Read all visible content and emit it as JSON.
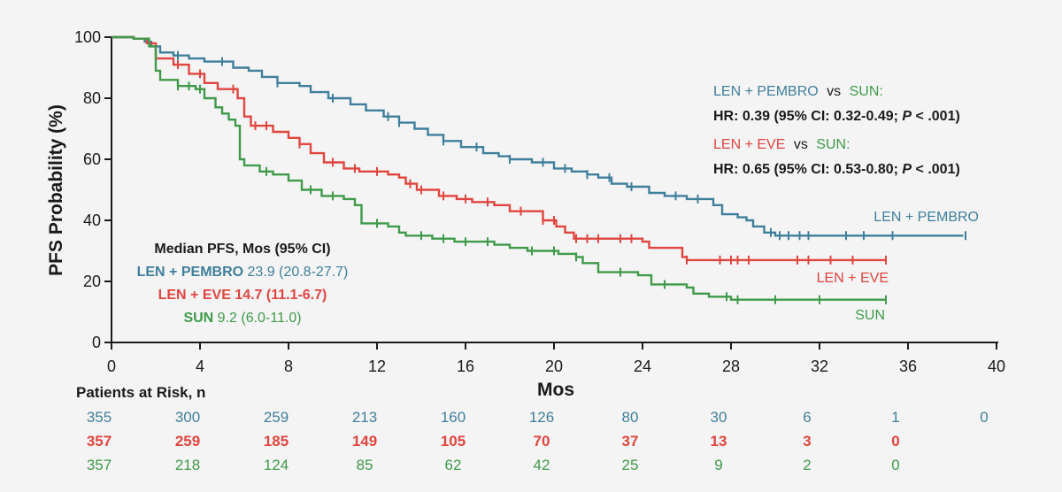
{
  "colors": {
    "pembro": "#3f7f9b",
    "eve": "#e0453f",
    "sun": "#3f9a4a",
    "dark": "#1a1a1a",
    "background": "#f4f4f4"
  },
  "chart_data": {
    "type": "line",
    "title": "",
    "xlabel": "Mos",
    "ylabel": "PFS Probability (%)",
    "xlim": [
      0,
      40
    ],
    "ylim": [
      0,
      100
    ],
    "x_ticks": [
      "0",
      "4",
      "8",
      "12",
      "16",
      "20",
      "24",
      "28",
      "32",
      "36",
      "40"
    ],
    "y_ticks": [
      "0",
      "20",
      "40",
      "60",
      "80",
      "100"
    ],
    "grid": false,
    "series": [
      {
        "name": "LEN + PEMBRO",
        "color_key": "pembro",
        "points": [
          [
            0,
            100
          ],
          [
            1,
            99.5
          ],
          [
            1.5,
            98.5
          ],
          [
            1.8,
            97
          ],
          [
            2.2,
            95
          ],
          [
            2.8,
            94
          ],
          [
            3.5,
            93
          ],
          [
            4.2,
            92
          ],
          [
            5.5,
            90
          ],
          [
            6.2,
            89
          ],
          [
            6.8,
            87
          ],
          [
            7.5,
            85
          ],
          [
            8.5,
            84
          ],
          [
            9,
            82
          ],
          [
            9.8,
            80
          ],
          [
            10.8,
            78
          ],
          [
            11.5,
            76
          ],
          [
            12.3,
            74
          ],
          [
            13,
            72
          ],
          [
            13.7,
            70
          ],
          [
            14.3,
            68
          ],
          [
            15,
            66
          ],
          [
            15.8,
            64
          ],
          [
            16.8,
            62
          ],
          [
            17.5,
            61
          ],
          [
            18,
            60
          ],
          [
            19,
            59
          ],
          [
            20,
            57
          ],
          [
            20.8,
            56
          ],
          [
            21.5,
            55
          ],
          [
            22,
            54
          ],
          [
            22.6,
            52
          ],
          [
            23.3,
            51
          ],
          [
            24.3,
            49
          ],
          [
            25,
            48
          ],
          [
            26,
            47
          ],
          [
            27.2,
            45
          ],
          [
            27.6,
            42
          ],
          [
            28.3,
            41
          ],
          [
            28.7,
            40
          ],
          [
            29,
            38
          ],
          [
            29.5,
            36
          ],
          [
            30,
            35
          ],
          [
            38.5,
            35
          ]
        ],
        "censor_x": [
          3,
          5,
          7.5,
          10,
          12.5,
          13,
          15,
          16.5,
          18,
          19.5,
          20.5,
          21.5,
          22.5,
          23.5,
          25.5,
          26.5,
          29.8,
          30.2,
          30.6,
          31.1,
          31.5,
          33.2,
          34,
          35.3,
          38.6
        ]
      },
      {
        "name": "LEN + EVE",
        "color_key": "eve",
        "points": [
          [
            0,
            100
          ],
          [
            1,
            99.5
          ],
          [
            1.6,
            98
          ],
          [
            2,
            93
          ],
          [
            2.8,
            91
          ],
          [
            3.5,
            88
          ],
          [
            4.2,
            85
          ],
          [
            4.8,
            83
          ],
          [
            5.7,
            80
          ],
          [
            6,
            74
          ],
          [
            6.3,
            71
          ],
          [
            7.3,
            69
          ],
          [
            8,
            67
          ],
          [
            8.5,
            65
          ],
          [
            9,
            62
          ],
          [
            9.6,
            59
          ],
          [
            10.5,
            57
          ],
          [
            11.2,
            56
          ],
          [
            12.5,
            55
          ],
          [
            13,
            54
          ],
          [
            13.3,
            52
          ],
          [
            13.8,
            50
          ],
          [
            14.8,
            48
          ],
          [
            15.6,
            47
          ],
          [
            16.3,
            46
          ],
          [
            17.3,
            45
          ],
          [
            18,
            43
          ],
          [
            19.5,
            40
          ],
          [
            20.1,
            38
          ],
          [
            20.5,
            36
          ],
          [
            20.9,
            34
          ],
          [
            24,
            33
          ],
          [
            24.3,
            31
          ],
          [
            25.8,
            28
          ],
          [
            26,
            27
          ],
          [
            35,
            27
          ]
        ],
        "censor_x": [
          3,
          4,
          5.5,
          6.5,
          7,
          8.5,
          10,
          11,
          12,
          13.5,
          14,
          15,
          16,
          17,
          18.5,
          19.5,
          20,
          21,
          21.5,
          22,
          23,
          23.5,
          26,
          27.5,
          28,
          28.3,
          28.8,
          31,
          31.5,
          32.5,
          33.5,
          35
        ]
      },
      {
        "name": "SUN",
        "color_key": "sun",
        "points": [
          [
            0,
            100
          ],
          [
            1,
            99.5
          ],
          [
            1.7,
            97
          ],
          [
            2,
            89
          ],
          [
            2.2,
            86
          ],
          [
            3,
            84
          ],
          [
            3.8,
            83
          ],
          [
            4.2,
            80
          ],
          [
            4.7,
            77
          ],
          [
            5,
            75
          ],
          [
            5.3,
            73
          ],
          [
            5.6,
            71
          ],
          [
            5.8,
            60
          ],
          [
            6,
            58
          ],
          [
            6.7,
            56
          ],
          [
            7.3,
            55
          ],
          [
            8,
            53
          ],
          [
            8.6,
            50
          ],
          [
            9.5,
            48
          ],
          [
            10.5,
            47
          ],
          [
            11,
            45
          ],
          [
            11.3,
            39
          ],
          [
            12.5,
            38
          ],
          [
            13,
            36
          ],
          [
            13.3,
            35
          ],
          [
            14.5,
            34
          ],
          [
            15.5,
            33
          ],
          [
            16.5,
            33
          ],
          [
            17.3,
            32
          ],
          [
            18,
            31
          ],
          [
            18.8,
            30
          ],
          [
            20.2,
            29
          ],
          [
            21,
            28
          ],
          [
            21.3,
            26
          ],
          [
            22,
            23
          ],
          [
            23.8,
            22
          ],
          [
            24.4,
            19
          ],
          [
            26,
            18
          ],
          [
            26.3,
            16
          ],
          [
            27,
            15
          ],
          [
            28,
            14
          ],
          [
            35,
            14
          ]
        ],
        "censor_x": [
          3,
          3.5,
          4,
          7,
          9,
          10,
          12,
          14,
          15,
          16,
          17,
          19,
          20,
          21,
          23,
          25,
          27.8,
          28.3,
          30,
          32,
          35
        ]
      }
    ],
    "hr": {
      "line1": {
        "a": "LEN + PEMBRO",
        "vs": "vs",
        "b": "SUN:"
      },
      "line1_result": {
        "prefix": "HR: 0.39 (95% CI: 0.32-0.49; ",
        "p": "P",
        "suffix": " < .001)"
      },
      "line2": {
        "a": "LEN + EVE",
        "vs": "vs",
        "b": "SUN:"
      },
      "line2_result": {
        "prefix": "HR: 0.65 (95% CI: 0.53-0.80; ",
        "p": "P",
        "suffix": " < .001)"
      }
    },
    "median": {
      "heading": "Median PFS, Mos (95% CI)",
      "rows": [
        {
          "name": "LEN + PEMBRO",
          "value": " 23.9 (20.8-27.7)"
        },
        {
          "name": "LEN + EVE",
          "value": " 14.7 (11.1-6.7)"
        },
        {
          "name": "SUN",
          "value": " 9.2 (6.0-11.0)"
        }
      ]
    },
    "curve_labels": [
      "LEN + PEMBRO",
      "LEN + EVE",
      "SUN"
    ],
    "at_risk": {
      "heading": "Patients at Risk, n",
      "rows": [
        [
          "355",
          "300",
          "259",
          "213",
          "160",
          "126",
          "80",
          "30",
          "6",
          "1",
          "0"
        ],
        [
          "357",
          "259",
          "185",
          "149",
          "105",
          "70",
          "37",
          "13",
          "3",
          "0"
        ],
        [
          "357",
          "218",
          "124",
          "85",
          "62",
          "42",
          "25",
          "9",
          "2",
          "0"
        ]
      ]
    }
  }
}
